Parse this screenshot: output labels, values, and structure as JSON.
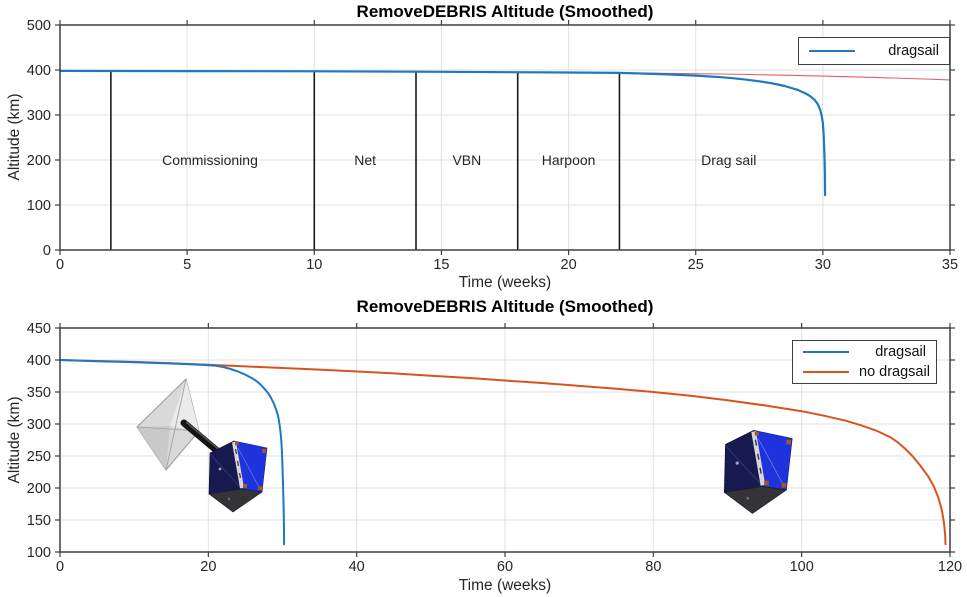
{
  "figure": {
    "background": "#ffffff"
  },
  "colors": {
    "dragsail_blue": "#1e78c2",
    "no_dragsail_orange": "#d9531e",
    "reference_red": "#e46060",
    "phase_line": "#1a1a1a",
    "grid": "#e2e2e2",
    "frame": "#3f3f3f"
  },
  "chart_data": [
    {
      "type": "line",
      "title": "RemoveDEBRIS Altitude (Smoothed)",
      "xlabel": "Time (weeks)",
      "ylabel": "Altitude (km)",
      "xlim": [
        0,
        35
      ],
      "ylim": [
        0,
        500
      ],
      "xticks": [
        0,
        5,
        10,
        15,
        20,
        25,
        30,
        35
      ],
      "yticks": [
        0,
        100,
        200,
        300,
        400,
        500
      ],
      "grid": true,
      "legend_position": "top-right",
      "legend": [
        {
          "label": "dragsail",
          "color": "#1e78c2"
        }
      ],
      "phase_lines": [
        {
          "x": 2,
          "from": 0,
          "to": 398
        },
        {
          "x": 10,
          "from": 0,
          "to": 397
        },
        {
          "x": 14,
          "from": 0,
          "to": 396.5
        },
        {
          "x": 18,
          "from": 0,
          "to": 396
        },
        {
          "x": 22,
          "from": 0,
          "to": 395
        }
      ],
      "phase_labels": [
        {
          "text": "Commissioning",
          "x": 5.9,
          "y": 200
        },
        {
          "text": "Net",
          "x": 12,
          "y": 200
        },
        {
          "text": "VBN",
          "x": 16,
          "y": 200
        },
        {
          "text": "Harpoon",
          "x": 20,
          "y": 200
        },
        {
          "text": "Drag sail",
          "x": 26.3,
          "y": 200
        }
      ],
      "series": [
        {
          "name": "no dragsail reference",
          "color": "#e46060",
          "width": 1.1,
          "points": [
            [
              22,
              394
            ],
            [
              24,
              392.5
            ],
            [
              26,
              391
            ],
            [
              28,
              389
            ],
            [
              30,
              386.5
            ],
            [
              32,
              383.5
            ],
            [
              34,
              380
            ],
            [
              35,
              378
            ]
          ]
        },
        {
          "name": "dragsail",
          "color": "#1e78c2",
          "width": 2.2,
          "points": [
            [
              0,
              398
            ],
            [
              5,
              397.5
            ],
            [
              10,
              397
            ],
            [
              15,
              396
            ],
            [
              20,
              394.5
            ],
            [
              22,
              393.5
            ],
            [
              23,
              392
            ],
            [
              24,
              390
            ],
            [
              25,
              387.5
            ],
            [
              26,
              384
            ],
            [
              26.5,
              381.5
            ],
            [
              27,
              378.5
            ],
            [
              27.5,
              375
            ],
            [
              28,
              370.5
            ],
            [
              28.5,
              364.5
            ],
            [
              29,
              356
            ],
            [
              29.3,
              348.5
            ],
            [
              29.5,
              342
            ],
            [
              29.7,
              332
            ],
            [
              29.8,
              324
            ],
            [
              29.9,
              311
            ],
            [
              29.95,
              299
            ],
            [
              30,
              282
            ],
            [
              30.03,
              258
            ],
            [
              30.05,
              232
            ],
            [
              30.07,
              200
            ],
            [
              30.08,
              165
            ],
            [
              30.09,
              122
            ]
          ]
        }
      ]
    },
    {
      "type": "line",
      "title": "RemoveDEBRIS Altitude (Smoothed)",
      "xlabel": "Time (weeks)",
      "ylabel": "Altitude (km)",
      "xlim": [
        0,
        120
      ],
      "ylim": [
        100,
        450
      ],
      "xticks": [
        0,
        20,
        40,
        60,
        80,
        100,
        120
      ],
      "yticks": [
        100,
        150,
        200,
        250,
        300,
        350,
        400,
        450
      ],
      "grid": true,
      "legend_position": "top-right",
      "legend": [
        {
          "label": "dragsail",
          "color": "#1e78c2"
        },
        {
          "label": "no dragsail",
          "color": "#d9531e"
        }
      ],
      "annotations": [
        {
          "name": "dragsail-spacecraft-image",
          "desc": "CubeSat with deployed drag sail",
          "x": 22,
          "y": 290
        },
        {
          "name": "cubesat-image",
          "desc": "CubeSat without drag sail",
          "x": 96,
          "y": 275
        }
      ],
      "series": [
        {
          "name": "no dragsail",
          "color": "#d9531e",
          "width": 2,
          "points": [
            [
              0,
              400
            ],
            [
              5,
              398.5
            ],
            [
              10,
              397
            ],
            [
              15,
              395
            ],
            [
              20,
              392.5
            ],
            [
              25,
              390
            ],
            [
              30,
              387.5
            ],
            [
              35,
              385
            ],
            [
              40,
              382
            ],
            [
              45,
              379
            ],
            [
              50,
              375.5
            ],
            [
              55,
              372
            ],
            [
              60,
              368
            ],
            [
              65,
              364
            ],
            [
              70,
              359.5
            ],
            [
              75,
              355
            ],
            [
              80,
              350
            ],
            [
              85,
              344
            ],
            [
              90,
              337
            ],
            [
              95,
              329
            ],
            [
              100,
              320
            ],
            [
              103,
              313
            ],
            [
              106,
              305
            ],
            [
              108,
              298
            ],
            [
              110,
              290
            ],
            [
              112,
              279
            ],
            [
              113,
              271
            ],
            [
              114,
              261
            ],
            [
              115,
              249
            ],
            [
              116,
              235
            ],
            [
              117,
              219
            ],
            [
              117.8,
              203
            ],
            [
              118.4,
              186
            ],
            [
              118.9,
              166
            ],
            [
              119.2,
              144
            ],
            [
              119.35,
              125
            ],
            [
              119.4,
              112
            ]
          ]
        },
        {
          "name": "dragsail",
          "color": "#1e78c2",
          "width": 2,
          "points": [
            [
              0,
              400
            ],
            [
              5,
              398
            ],
            [
              10,
              396.5
            ],
            [
              15,
              394.5
            ],
            [
              19,
              392.5
            ],
            [
              21,
              391
            ],
            [
              22,
              389
            ],
            [
              23,
              386
            ],
            [
              24,
              382
            ],
            [
              25,
              377
            ],
            [
              26,
              371
            ],
            [
              26.5,
              367
            ],
            [
              27,
              362
            ],
            [
              27.5,
              356
            ],
            [
              28,
              349
            ],
            [
              28.4,
              342
            ],
            [
              28.8,
              333
            ],
            [
              29.1,
              324
            ],
            [
              29.4,
              313
            ],
            [
              29.6,
              300
            ],
            [
              29.75,
              286
            ],
            [
              29.85,
              272
            ],
            [
              29.92,
              257
            ],
            [
              29.97,
              243
            ],
            [
              30.02,
              226
            ],
            [
              30.07,
              206
            ],
            [
              30.12,
              183
            ],
            [
              30.17,
              156
            ],
            [
              30.2,
              130
            ],
            [
              30.22,
              112
            ]
          ]
        }
      ]
    }
  ]
}
